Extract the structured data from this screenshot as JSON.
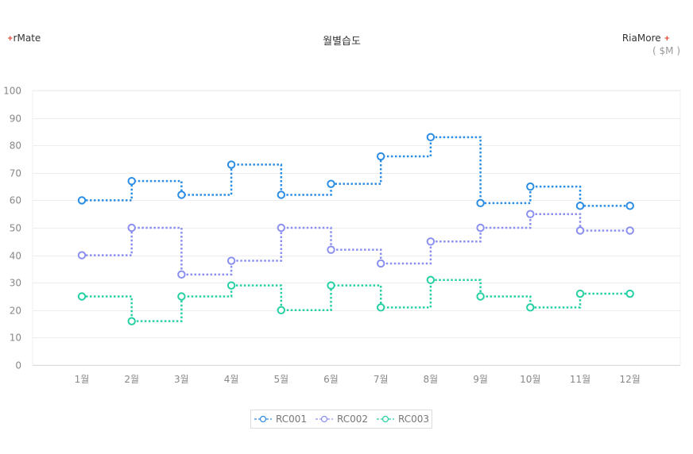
{
  "header": {
    "brand_left": "rMate",
    "brand_right": "RiaMore",
    "brand_plus": "+",
    "title": "월별습도",
    "unit": "( $M )"
  },
  "chart_data": {
    "type": "line",
    "step": true,
    "title": "월별습도",
    "categories": [
      "1월",
      "2월",
      "3월",
      "4월",
      "5월",
      "6월",
      "7월",
      "8월",
      "9월",
      "10월",
      "11월",
      "12월"
    ],
    "ylim": [
      0,
      100
    ],
    "yticks": [
      0,
      10,
      20,
      30,
      40,
      50,
      60,
      70,
      80,
      90,
      100
    ],
    "grid": true,
    "legend_placement": "bottom",
    "series": [
      {
        "name": "RC001",
        "color": "#2b8de3",
        "values": [
          60,
          67,
          62,
          73,
          62,
          66,
          76,
          83,
          59,
          65,
          58,
          58
        ]
      },
      {
        "name": "RC002",
        "color": "#8a8ff0",
        "values": [
          40,
          50,
          33,
          38,
          50,
          42,
          37,
          45,
          50,
          55,
          49,
          49
        ]
      },
      {
        "name": "RC003",
        "color": "#25d0a2",
        "values": [
          25,
          16,
          25,
          29,
          20,
          29,
          21,
          31,
          25,
          21,
          26,
          26
        ]
      }
    ]
  }
}
